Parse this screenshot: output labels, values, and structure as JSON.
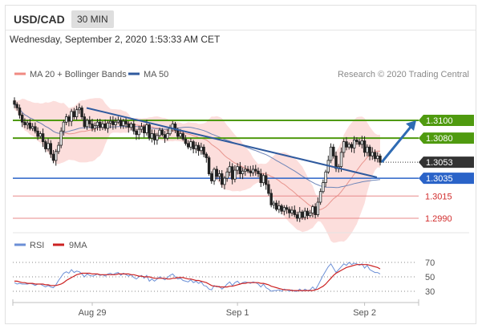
{
  "header": {
    "symbol": "USD/CAD",
    "interval": "30 MIN"
  },
  "datetime": "Wednesday, September 2, 2020 1:53:33 AM CET",
  "legend": {
    "items": [
      {
        "label": "MA 20 + Bollinger Bands",
        "color": "#f08a82"
      },
      {
        "label": "MA 50",
        "color": "#2f5a9e"
      }
    ],
    "credit": "Research © 2020 Trading Central"
  },
  "rsi_legend": {
    "items": [
      {
        "label": "RSI",
        "color": "#6b8fd6"
      },
      {
        "label": "9MA",
        "color": "#cc2222"
      }
    ]
  },
  "chart_data": [
    {
      "type": "candlestick",
      "title": "USD/CAD",
      "ylim": [
        1.2975,
        1.313
      ],
      "x_tick_labels": [
        "Aug 29",
        "Sep 1",
        "Sep 2"
      ],
      "price_lines": [
        {
          "label": "1.3100",
          "value": 1.31,
          "style": "resistance",
          "color": "#4f9a0f"
        },
        {
          "label": "1.3080",
          "value": 1.308,
          "style": "resistance",
          "color": "#4f9a0f"
        },
        {
          "label": "1.3053",
          "value": 1.3053,
          "style": "last-price",
          "color": "#333333"
        },
        {
          "label": "1.3035",
          "value": 1.3035,
          "style": "pivot",
          "color": "#2a63c8"
        },
        {
          "label": "1.3015",
          "value": 1.3015,
          "style": "support",
          "color": "#d22d2d"
        },
        {
          "label": "1.2990",
          "value": 1.299,
          "style": "support",
          "color": "#d22d2d"
        }
      ],
      "closes": [
        1.3118,
        1.3114,
        1.3106,
        1.3098,
        1.3095,
        1.3097,
        1.3091,
        1.3093,
        1.3088,
        1.3082,
        1.3085,
        1.3076,
        1.3068,
        1.3074,
        1.3062,
        1.3055,
        1.3065,
        1.3072,
        1.3088,
        1.3098,
        1.3104,
        1.3099,
        1.311,
        1.3104,
        1.3112,
        1.3114,
        1.3104,
        1.3093,
        1.31,
        1.3096,
        1.3091,
        1.3094,
        1.3098,
        1.3092,
        1.3096,
        1.3091,
        1.3097,
        1.3099,
        1.3095,
        1.3098,
        1.31,
        1.3094,
        1.3099,
        1.3096,
        1.3092,
        1.3096,
        1.3088,
        1.3084,
        1.309,
        1.3093,
        1.3086,
        1.3095,
        1.308,
        1.3085,
        1.3078,
        1.3083,
        1.3089,
        1.3084,
        1.308,
        1.3085,
        1.3091,
        1.3096,
        1.3089,
        1.3082,
        1.3085,
        1.3079,
        1.3074,
        1.307,
        1.3076,
        1.3068,
        1.3072,
        1.3066,
        1.307,
        1.3062,
        1.3058,
        1.304,
        1.3032,
        1.3045,
        1.3037,
        1.304,
        1.3028,
        1.3035,
        1.3042,
        1.3048,
        1.3034,
        1.3044,
        1.3048,
        1.304,
        1.3043,
        1.3045,
        1.3043,
        1.3041,
        1.3045,
        1.3043,
        1.304,
        1.303,
        1.3038,
        1.3028,
        1.3018,
        1.3005,
        1.3007,
        1.3,
        1.3004,
        1.2998,
        1.3002,
        1.3,
        1.2996,
        1.2999,
        1.2994,
        1.299,
        1.2997,
        1.2991,
        1.2998,
        1.2993,
        1.2996,
        1.3003,
        1.2994,
        1.3008,
        1.302,
        1.303,
        1.3042,
        1.3055,
        1.307,
        1.306,
        1.3046,
        1.3048,
        1.3064,
        1.3076,
        1.307,
        1.3073,
        1.3069,
        1.3078,
        1.3076,
        1.3073,
        1.3077,
        1.3064,
        1.307,
        1.306,
        1.3064,
        1.3057,
        1.306,
        1.3053
      ],
      "annotations": [
        {
          "type": "trendline",
          "label": "descending trendline",
          "color": "#2f5a9e"
        },
        {
          "type": "arrow",
          "label": "projected path",
          "color": "#2f6bb3"
        }
      ]
    },
    {
      "type": "line",
      "title": "RSI",
      "ylim": [
        20,
        80
      ],
      "y_ticks": [
        70,
        50,
        30
      ],
      "series": [
        {
          "name": "RSI",
          "color": "#6b8fd6",
          "values": [
            42,
            40,
            41,
            40,
            40,
            40,
            41,
            40,
            38,
            40,
            40,
            38,
            36,
            38,
            36,
            35,
            39,
            45,
            50,
            55,
            57,
            55,
            60,
            56,
            58,
            57,
            54,
            50,
            54,
            52,
            51,
            52,
            54,
            52,
            53,
            51,
            54,
            55,
            53,
            55,
            56,
            52,
            55,
            53,
            51,
            53,
            49,
            47,
            50,
            52,
            48,
            52,
            44,
            47,
            44,
            47,
            50,
            48,
            46,
            49,
            52,
            54,
            50,
            47,
            48,
            45,
            44,
            43,
            46,
            42,
            44,
            41,
            43,
            38,
            37,
            33,
            32,
            38,
            36,
            37,
            33,
            36,
            40,
            43,
            38,
            42,
            44,
            40,
            42,
            43,
            42,
            41,
            43,
            42,
            40,
            36,
            40,
            35,
            33,
            30,
            31,
            31,
            32,
            30,
            33,
            32,
            30,
            32,
            30,
            30,
            33,
            30,
            33,
            31,
            32,
            36,
            32,
            38,
            45,
            52,
            58,
            64,
            68,
            62,
            56,
            60,
            64,
            68,
            66,
            70,
            67,
            69,
            68,
            66,
            68,
            62,
            66,
            60,
            58,
            56,
            56,
            54
          ]
        },
        {
          "name": "9MA",
          "color": "#cc2222",
          "values": [
            44,
            44,
            43,
            42,
            42,
            41,
            41,
            41,
            40,
            40,
            40,
            40,
            39,
            39,
            38,
            38,
            38,
            39,
            40,
            42,
            45,
            47,
            49,
            51,
            53,
            54,
            55,
            55,
            55,
            55,
            54,
            54,
            54,
            53,
            53,
            53,
            53,
            53,
            53,
            53,
            54,
            54,
            54,
            54,
            54,
            53,
            53,
            52,
            51,
            51,
            50,
            50,
            50,
            49,
            48,
            48,
            48,
            48,
            48,
            47,
            47,
            48,
            48,
            49,
            49,
            49,
            48,
            47,
            47,
            46,
            45,
            45,
            44,
            43,
            42,
            40,
            38,
            37,
            37,
            36,
            36,
            36,
            36,
            37,
            37,
            38,
            39,
            40,
            41,
            41,
            42,
            42,
            42,
            42,
            42,
            41,
            41,
            40,
            39,
            37,
            36,
            35,
            34,
            33,
            32,
            32,
            32,
            31,
            31,
            31,
            31,
            31,
            31,
            31,
            31,
            31,
            32,
            33,
            35,
            37,
            40,
            44,
            48,
            52,
            55,
            57,
            59,
            61,
            63,
            64,
            65,
            66,
            67,
            67,
            67,
            67,
            67,
            66,
            65,
            64,
            63,
            61
          ]
        }
      ]
    }
  ]
}
